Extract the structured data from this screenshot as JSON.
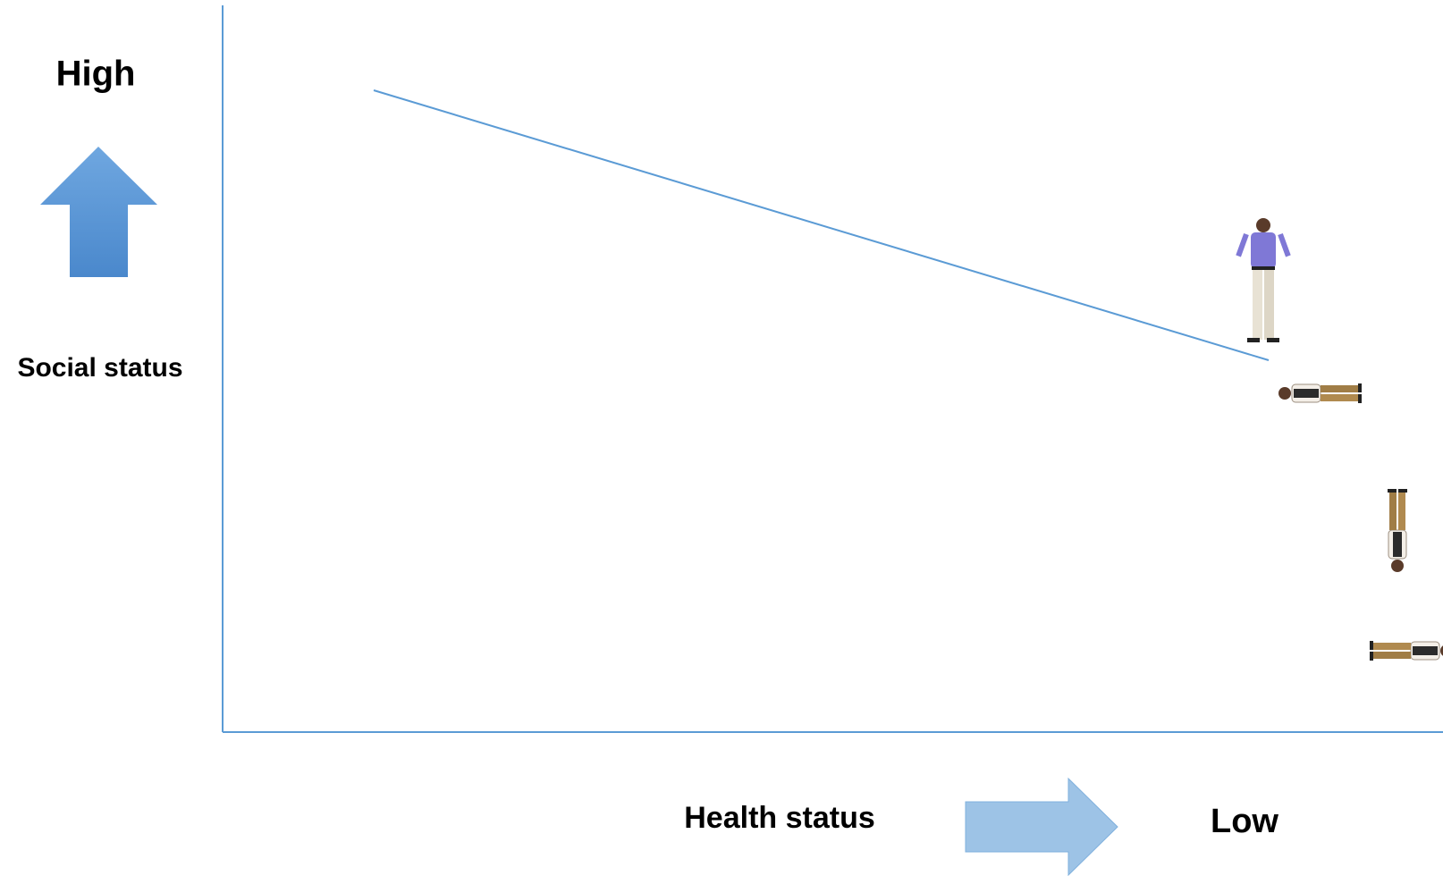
{
  "labels": {
    "high": "High",
    "social_status": "Social status",
    "health_status": "Health status",
    "low": "Low"
  }
}
